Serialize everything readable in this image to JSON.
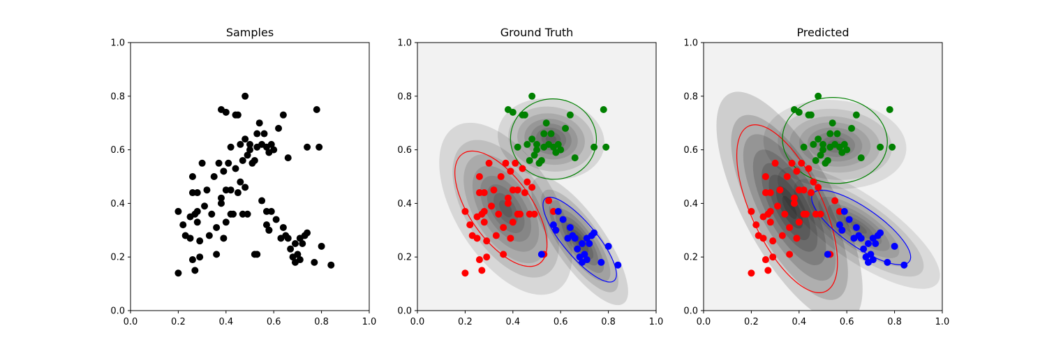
{
  "chart_data": [
    {
      "type": "scatter",
      "title": "Samples",
      "xlim": [
        0.0,
        1.0
      ],
      "ylim": [
        0.0,
        1.0
      ],
      "xticks": [
        "0.0",
        "0.2",
        "0.4",
        "0.6",
        "0.8",
        "1.0"
      ],
      "yticks": [
        "0.0",
        "0.2",
        "0.4",
        "0.6",
        "0.8",
        "1.0"
      ],
      "background": "#ffffff",
      "series": [
        {
          "color": "#000000",
          "points": "all"
        }
      ]
    },
    {
      "type": "scatter",
      "title": "Ground Truth",
      "xlim": [
        0.0,
        1.0
      ],
      "ylim": [
        0.0,
        1.0
      ],
      "xticks": [
        "0.0",
        "0.2",
        "0.4",
        "0.6",
        "0.8",
        "1.0"
      ],
      "yticks": [
        "0.0",
        "0.2",
        "0.4",
        "0.6",
        "0.8",
        "1.0"
      ],
      "background": "#f2f2f2",
      "density": [
        {
          "center": [
            0.56,
            0.64
          ],
          "sx": 0.075,
          "sy": 0.05,
          "angle": -10,
          "weight": 0.3
        },
        {
          "center": [
            0.37,
            0.38
          ],
          "sx": 0.07,
          "sy": 0.12,
          "angle": 32,
          "weight": 0.3
        },
        {
          "center": [
            0.68,
            0.26
          ],
          "sx": 0.035,
          "sy": 0.095,
          "angle": 35,
          "weight": 0.4
        }
      ],
      "ellipses": [
        {
          "color": "#ff0000",
          "center": [
            0.35,
            0.38
          ],
          "rx": 0.13,
          "ry": 0.25,
          "angle": 35
        },
        {
          "color": "#008000",
          "center": [
            0.57,
            0.64
          ],
          "rx": 0.18,
          "ry": 0.15,
          "angle": -5
        },
        {
          "color": "#0000ff",
          "center": [
            0.68,
            0.265
          ],
          "rx": 0.07,
          "ry": 0.2,
          "angle": 40
        }
      ],
      "series": [
        {
          "color": "#ff0000",
          "group": "red"
        },
        {
          "color": "#008000",
          "group": "green"
        },
        {
          "color": "#0000ff",
          "group": "blue"
        }
      ]
    },
    {
      "type": "scatter",
      "title": "Predicted",
      "xlim": [
        0.0,
        1.0
      ],
      "ylim": [
        0.0,
        1.0
      ],
      "xticks": [
        "0.0",
        "0.2",
        "0.4",
        "0.6",
        "0.8",
        "1.0"
      ],
      "yticks": [
        "0.0",
        "0.2",
        "0.4",
        "0.6",
        "0.8",
        "1.0"
      ],
      "background": "#f2f2f2",
      "density": [
        {
          "center": [
            0.55,
            0.62
          ],
          "sx": 0.1,
          "sy": 0.055,
          "angle": -5,
          "weight": 0.22
        },
        {
          "center": [
            0.36,
            0.385
          ],
          "sx": 0.065,
          "sy": 0.16,
          "angle": 28,
          "weight": 0.55
        },
        {
          "center": [
            0.65,
            0.31
          ],
          "sx": 0.045,
          "sy": 0.12,
          "angle": 55,
          "weight": 0.23
        }
      ],
      "ellipses": [
        {
          "color": "#ff0000",
          "center": [
            0.35,
            0.38
          ],
          "rx": 0.15,
          "ry": 0.34,
          "angle": 25
        },
        {
          "color": "#008000",
          "center": [
            0.55,
            0.635
          ],
          "rx": 0.22,
          "ry": 0.16,
          "angle": -5
        },
        {
          "color": "#0000ff",
          "center": [
            0.66,
            0.31
          ],
          "rx": 0.08,
          "ry": 0.22,
          "angle": 55
        }
      ],
      "series": [
        {
          "color": "#ff0000",
          "group": "red"
        },
        {
          "color": "#008000",
          "group": "green"
        },
        {
          "color": "#0000ff",
          "group": "blue"
        }
      ]
    }
  ],
  "points": {
    "red": [
      [
        0.2,
        0.37
      ],
      [
        0.2,
        0.14
      ],
      [
        0.22,
        0.32
      ],
      [
        0.23,
        0.28
      ],
      [
        0.25,
        0.35
      ],
      [
        0.25,
        0.27
      ],
      [
        0.26,
        0.19
      ],
      [
        0.26,
        0.44
      ],
      [
        0.26,
        0.5
      ],
      [
        0.27,
        0.36
      ],
      [
        0.27,
        0.15
      ],
      [
        0.28,
        0.44
      ],
      [
        0.28,
        0.33
      ],
      [
        0.28,
        0.37
      ],
      [
        0.29,
        0.26
      ],
      [
        0.29,
        0.2
      ],
      [
        0.3,
        0.55
      ],
      [
        0.31,
        0.39
      ],
      [
        0.32,
        0.45
      ],
      [
        0.33,
        0.28
      ],
      [
        0.34,
        0.36
      ],
      [
        0.35,
        0.5
      ],
      [
        0.36,
        0.31
      ],
      [
        0.36,
        0.21
      ],
      [
        0.37,
        0.55
      ],
      [
        0.38,
        0.42
      ],
      [
        0.38,
        0.4
      ],
      [
        0.39,
        0.27
      ],
      [
        0.39,
        0.52
      ],
      [
        0.4,
        0.45
      ],
      [
        0.4,
        0.33
      ],
      [
        0.41,
        0.55
      ],
      [
        0.42,
        0.36
      ],
      [
        0.42,
        0.45
      ],
      [
        0.43,
        0.36
      ],
      [
        0.44,
        0.53
      ],
      [
        0.45,
        0.44
      ],
      [
        0.46,
        0.48
      ],
      [
        0.47,
        0.36
      ],
      [
        0.48,
        0.46
      ],
      [
        0.49,
        0.36
      ],
      [
        0.53,
        0.21
      ],
      [
        0.57,
        0.37
      ],
      [
        0.58,
        0.3
      ],
      [
        0.55,
        0.41
      ]
    ],
    "green": [
      [
        0.38,
        0.75
      ],
      [
        0.4,
        0.74
      ],
      [
        0.42,
        0.61
      ],
      [
        0.44,
        0.73
      ],
      [
        0.45,
        0.73
      ],
      [
        0.46,
        0.62
      ],
      [
        0.47,
        0.56
      ],
      [
        0.48,
        0.8
      ],
      [
        0.48,
        0.64
      ],
      [
        0.49,
        0.58
      ],
      [
        0.5,
        0.62
      ],
      [
        0.5,
        0.6
      ],
      [
        0.51,
        0.55
      ],
      [
        0.52,
        0.56
      ],
      [
        0.53,
        0.61
      ],
      [
        0.53,
        0.66
      ],
      [
        0.54,
        0.7
      ],
      [
        0.55,
        0.62
      ],
      [
        0.56,
        0.66
      ],
      [
        0.57,
        0.61
      ],
      [
        0.58,
        0.59
      ],
      [
        0.59,
        0.62
      ],
      [
        0.6,
        0.6
      ],
      [
        0.62,
        0.68
      ],
      [
        0.64,
        0.73
      ],
      [
        0.66,
        0.57
      ],
      [
        0.74,
        0.61
      ],
      [
        0.78,
        0.75
      ],
      [
        0.79,
        0.61
      ]
    ],
    "blue": [
      [
        0.52,
        0.21
      ],
      [
        0.57,
        0.32
      ],
      [
        0.58,
        0.3
      ],
      [
        0.59,
        0.37
      ],
      [
        0.61,
        0.34
      ],
      [
        0.63,
        0.27
      ],
      [
        0.64,
        0.31
      ],
      [
        0.65,
        0.28
      ],
      [
        0.66,
        0.27
      ],
      [
        0.67,
        0.23
      ],
      [
        0.68,
        0.2
      ],
      [
        0.69,
        0.25
      ],
      [
        0.69,
        0.18
      ],
      [
        0.7,
        0.21
      ],
      [
        0.71,
        0.27
      ],
      [
        0.71,
        0.19
      ],
      [
        0.72,
        0.25
      ],
      [
        0.73,
        0.28
      ],
      [
        0.74,
        0.29
      ],
      [
        0.77,
        0.18
      ],
      [
        0.8,
        0.24
      ],
      [
        0.84,
        0.17
      ]
    ]
  }
}
